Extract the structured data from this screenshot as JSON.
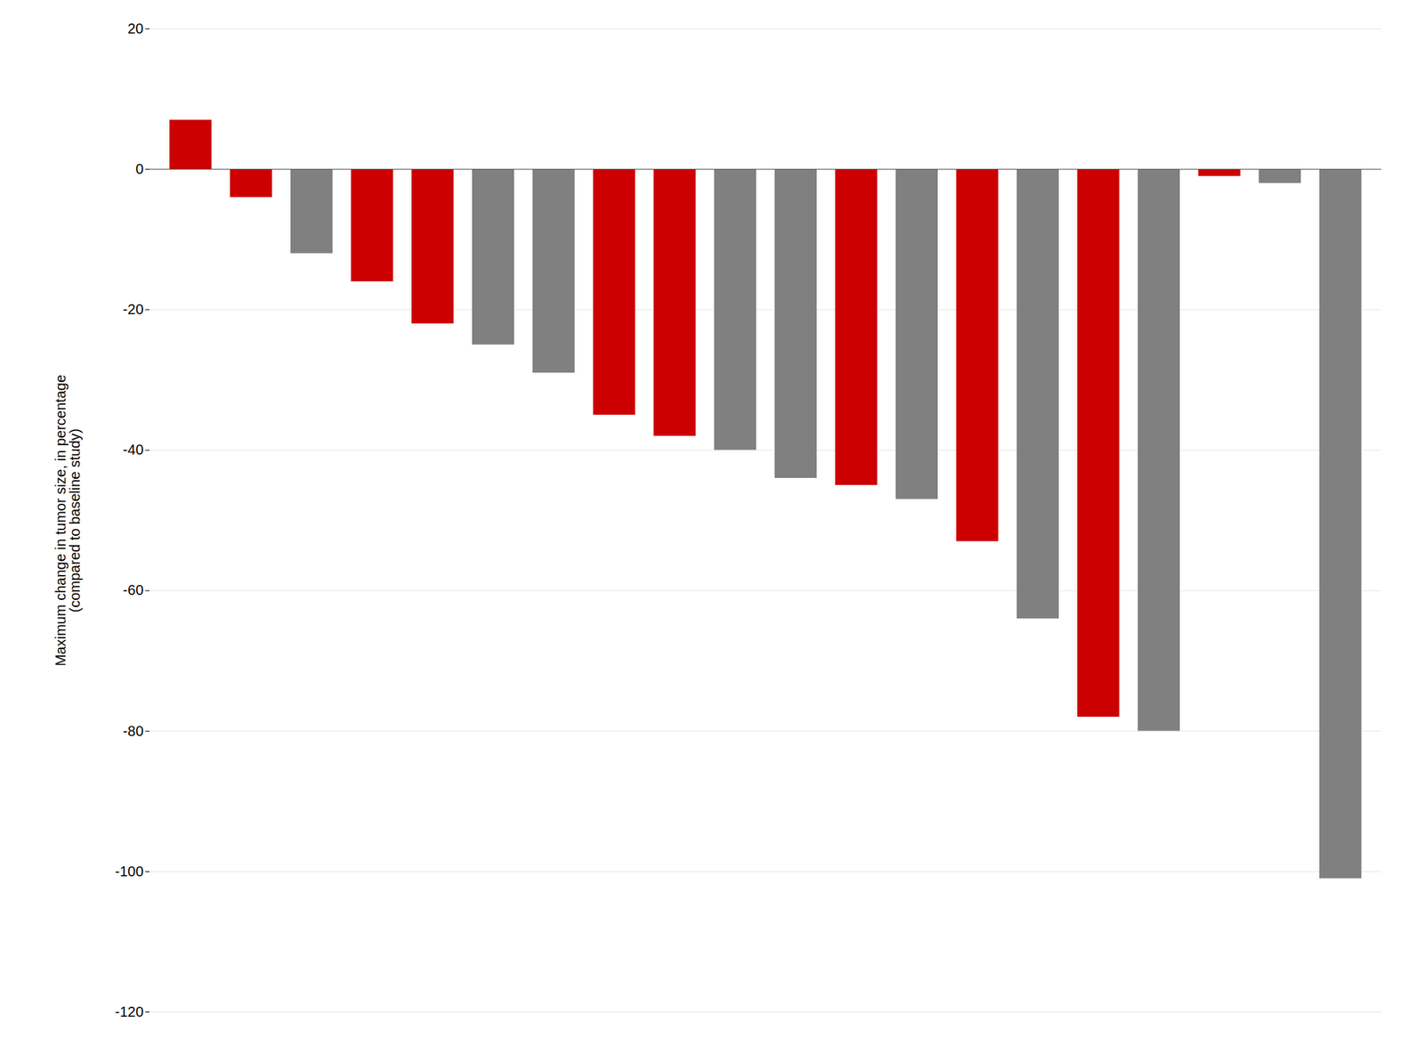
{
  "chart_data": {
    "type": "bar",
    "categories": [
      null,
      null,
      null,
      null,
      null,
      null,
      null,
      null,
      null,
      null,
      null,
      null,
      null,
      null,
      null,
      null,
      null,
      null,
      null,
      null
    ],
    "values": [
      7,
      -4,
      -12,
      -16,
      -22,
      -25,
      -29,
      -35,
      -38,
      -40,
      -44,
      -45,
      -47,
      -53,
      -64,
      -78,
      -80,
      -1,
      -2,
      -101
    ],
    "colors": [
      "#cc0000",
      "#cc0000",
      "#808080",
      "#cc0000",
      "#cc0000",
      "#808080",
      "#808080",
      "#cc0000",
      "#cc0000",
      "#808080",
      "#808080",
      "#cc0000",
      "#808080",
      "#cc0000",
      "#808080",
      "#cc0000",
      "#808080",
      "#cc0000",
      "#808080",
      "#808080"
    ],
    "ylabel": "Maximum change in tumor size, in percentage\n(compared to baseline study)",
    "ylim": [
      -120,
      20
    ],
    "yticks": [
      20,
      0,
      -20,
      -40,
      -60,
      -80,
      -100,
      -120
    ],
    "grid": true,
    "tick_labels": "y"
  }
}
